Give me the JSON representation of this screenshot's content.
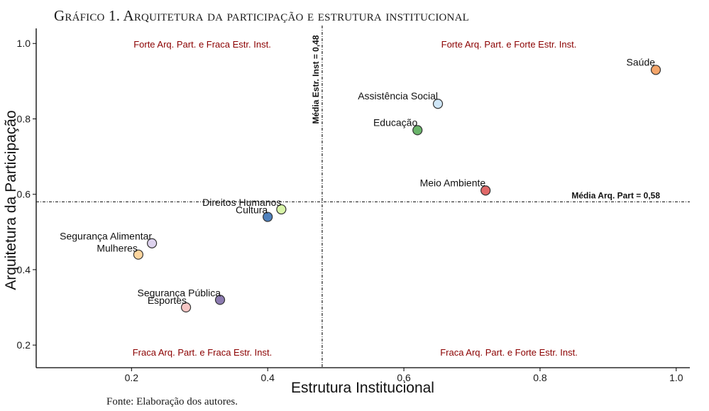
{
  "figure_title": "Gráfico 1. Arquitetura da participação e estrutura institucional",
  "source_note": "Fonte: Elaboração dos autores.",
  "chart_data": {
    "type": "scatter",
    "xlabel": "Estrutura Institucional",
    "ylabel": "Arquitetura da Participação",
    "xlim": [
      0.06,
      1.02
    ],
    "ylim": [
      0.14,
      1.04
    ],
    "xticks": [
      0.2,
      0.4,
      0.6,
      0.8,
      1.0
    ],
    "xtick_labels": [
      "0.2",
      "0.4",
      "0.6",
      "0.8",
      "1.0"
    ],
    "yticks": [
      0.2,
      0.4,
      0.6,
      0.8,
      1.0
    ],
    "ytick_labels": [
      "0.2",
      "0.4",
      "0.6",
      "0.8",
      "1.0"
    ],
    "grid": false,
    "reference_lines": {
      "vertical": {
        "x": 0.48,
        "label": "Média Estr. Inst = 0,48"
      },
      "horizontal": {
        "y": 0.58,
        "label": "Média Arq. Part = 0,58"
      }
    },
    "quadrant_labels": {
      "top_left": "Forte Arq. Part. e Fraca Estr. Inst.",
      "top_right": "Forte Arq. Part. e Forte Estr. Inst.",
      "bottom_left": "Fraca Arq. Part. e Fraca Estr. Inst.",
      "bottom_right": "Fraca Arq. Part. e Forte Estr. Inst."
    },
    "points": [
      {
        "label": "Saúde",
        "x": 0.97,
        "y": 0.93,
        "color": "#f4a56a"
      },
      {
        "label": "Assistência Social",
        "x": 0.65,
        "y": 0.84,
        "color": "#cfe6f7"
      },
      {
        "label": "Educação",
        "x": 0.62,
        "y": 0.77,
        "color": "#6ab46a"
      },
      {
        "label": "Meio Ambiente",
        "x": 0.72,
        "y": 0.61,
        "color": "#e06868"
      },
      {
        "label": "Direitos Humanos",
        "x": 0.42,
        "y": 0.56,
        "color": "#d8f4a8"
      },
      {
        "label": "Cultura",
        "x": 0.4,
        "y": 0.54,
        "color": "#4f81bd"
      },
      {
        "label": "Segurança Alimentar",
        "x": 0.23,
        "y": 0.47,
        "color": "#ddd2ee"
      },
      {
        "label": "Mulheres",
        "x": 0.21,
        "y": 0.44,
        "color": "#fdd59e"
      },
      {
        "label": "Segurança Pública",
        "x": 0.33,
        "y": 0.32,
        "color": "#8c7bb0"
      },
      {
        "label": "Esportes",
        "x": 0.28,
        "y": 0.3,
        "color": "#f7c6c4"
      }
    ]
  }
}
